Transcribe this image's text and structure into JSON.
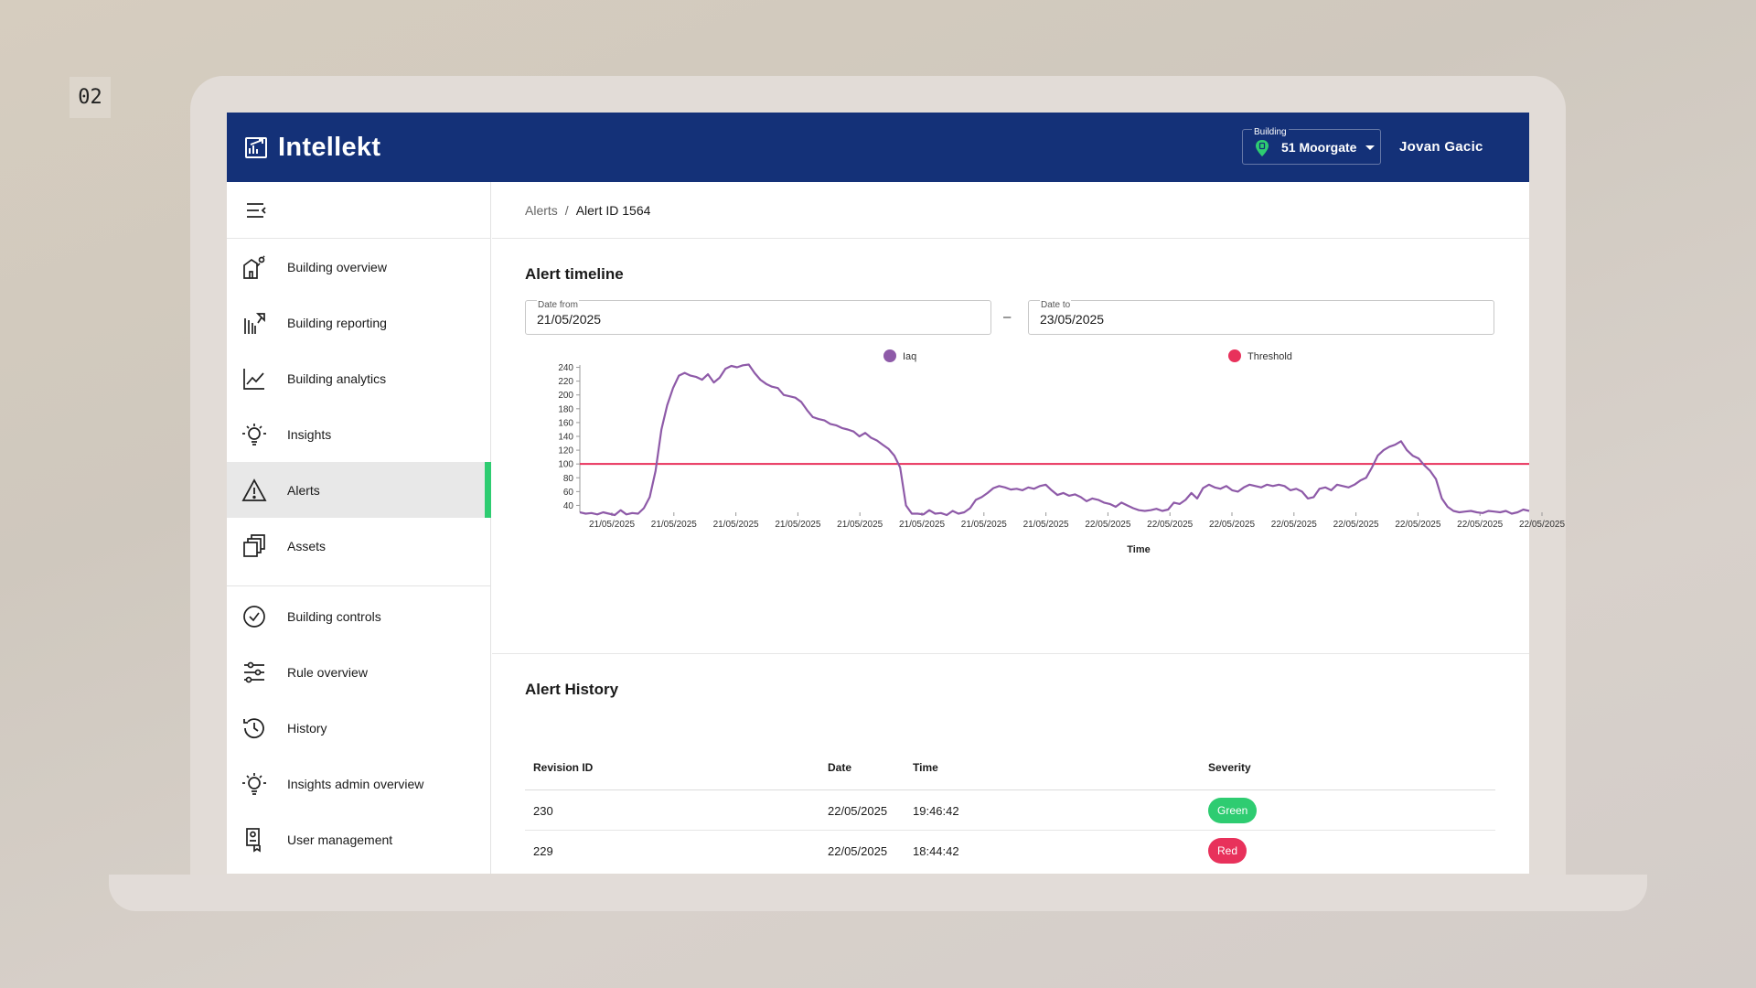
{
  "page_badge": "02",
  "app": {
    "name": "Intellekt",
    "logo_icon": "building-chart-icon",
    "brand_color": "#143178",
    "accent_color": "#2ecc71"
  },
  "header": {
    "building_label": "Building",
    "building_value": "51 Moorgate",
    "user_name": "Jovan Gacic"
  },
  "sidebar": {
    "items": [
      {
        "label": "Building overview",
        "icon": "building-overview-icon"
      },
      {
        "label": "Building reporting",
        "icon": "building-reporting-icon"
      },
      {
        "label": "Building analytics",
        "icon": "analytics-chart-icon"
      },
      {
        "label": "Insights",
        "icon": "lightbulb-icon"
      },
      {
        "label": "Alerts",
        "icon": "warning-triangle-icon",
        "active": true
      },
      {
        "label": "Assets",
        "icon": "assets-stack-icon"
      },
      {
        "label": "Building controls",
        "icon": "check-circle-icon"
      },
      {
        "label": "Rule overview",
        "icon": "sliders-icon"
      },
      {
        "label": "History",
        "icon": "history-clock-icon"
      },
      {
        "label": "Insights admin overview",
        "icon": "lightbulb-icon"
      },
      {
        "label": "User management",
        "icon": "user-badge-icon"
      }
    ]
  },
  "breadcrumb": {
    "parent": "Alerts",
    "separator": "/",
    "current": "Alert ID 1564"
  },
  "timeline": {
    "title": "Alert timeline",
    "date_from_label": "Date from",
    "date_from_value": "21/05/2025",
    "date_to_label": "Date to",
    "date_to_value": "23/05/2025",
    "dash": "–"
  },
  "chart_data": {
    "type": "line",
    "xlabel": "Time",
    "ylabel": "",
    "ylim": [
      30,
      250
    ],
    "yticks": [
      40,
      60,
      80,
      100,
      120,
      140,
      160,
      180,
      200,
      220,
      240
    ],
    "xticks": [
      "21/05/2025",
      "21/05/2025",
      "21/05/2025",
      "21/05/2025",
      "21/05/2025",
      "21/05/2025",
      "21/05/2025",
      "21/05/2025",
      "22/05/2025",
      "22/05/2025",
      "22/05/2025",
      "22/05/2025",
      "22/05/2025",
      "22/05/2025",
      "22/05/2025",
      "22/05/2025"
    ],
    "legend_position": "top",
    "grid": false,
    "series": [
      {
        "name": "Iaq",
        "color": "#8e5aa8",
        "values": [
          30,
          28,
          29,
          27,
          30,
          28,
          26,
          33,
          27,
          29,
          28,
          36,
          52,
          90,
          150,
          185,
          210,
          228,
          232,
          228,
          226,
          222,
          230,
          218,
          225,
          238,
          242,
          240,
          243,
          244,
          232,
          222,
          216,
          212,
          210,
          200,
          198,
          196,
          190,
          178,
          168,
          165,
          163,
          158,
          156,
          152,
          150,
          147,
          140,
          145,
          138,
          134,
          128,
          122,
          112,
          95,
          40,
          28,
          28,
          27,
          33,
          28,
          29,
          26,
          32,
          28,
          30,
          36,
          48,
          52,
          58,
          65,
          68,
          66,
          63,
          64,
          62,
          66,
          64,
          68,
          70,
          62,
          55,
          58,
          54,
          56,
          52,
          46,
          50,
          48,
          44,
          42,
          38,
          44,
          40,
          36,
          33,
          32,
          33,
          35,
          32,
          34,
          44,
          42,
          48,
          58,
          50,
          65,
          70,
          66,
          64,
          68,
          62,
          60,
          66,
          70,
          68,
          66,
          70,
          68,
          70,
          68,
          62,
          64,
          60,
          50,
          52,
          64,
          66,
          62,
          70,
          68,
          66,
          70,
          76,
          80,
          95,
          112,
          120,
          125,
          128,
          133,
          120,
          112,
          108,
          98,
          90,
          78,
          50,
          38,
          32,
          30,
          31,
          32,
          30,
          29,
          32,
          31,
          30,
          32,
          28,
          30,
          34,
          32
        ]
      },
      {
        "name": "Threshold",
        "color": "#e8315b",
        "values": [
          100
        ]
      }
    ]
  },
  "history": {
    "title": "Alert History",
    "columns": [
      "Revision ID",
      "Date",
      "Time",
      "Severity"
    ],
    "rows": [
      {
        "revision": "230",
        "date": "22/05/2025",
        "time": "19:46:42",
        "severity": "Green",
        "severity_color": "#2ecc71"
      },
      {
        "revision": "229",
        "date": "22/05/2025",
        "time": "18:44:42",
        "severity": "Red",
        "severity_color": "#e8315b"
      }
    ]
  }
}
